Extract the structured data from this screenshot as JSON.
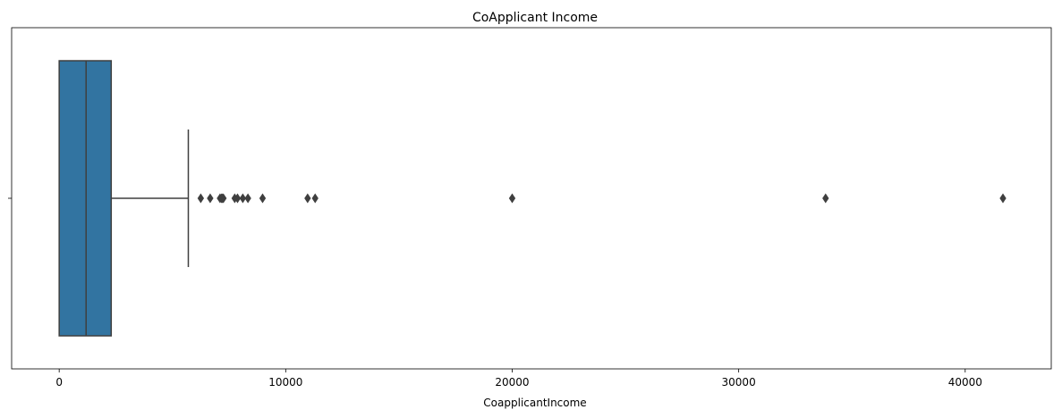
{
  "chart_data": {
    "type": "box",
    "title": "CoApplicant Income",
    "xlabel": "CoapplicantIncome",
    "ylabel": "",
    "xlim": [
      -2100,
      43800
    ],
    "x_ticks": [
      0,
      10000,
      20000,
      30000,
      40000
    ],
    "x_tick_labels": [
      "0",
      "10000",
      "20000",
      "30000",
      "40000"
    ],
    "orientation": "horizontal",
    "grid": false,
    "box": {
      "min": 0,
      "q1": 0,
      "median": 1188,
      "q3": 2297,
      "whisker_high": 5701,
      "color": "#3274a1",
      "edge_color": "#3f3f3f"
    },
    "outliers": [
      6250,
      6666,
      7101,
      7166,
      7210,
      7250,
      7750,
      7873,
      8106,
      8333,
      8980,
      10968,
      11300,
      20000,
      33837,
      41667
    ]
  }
}
